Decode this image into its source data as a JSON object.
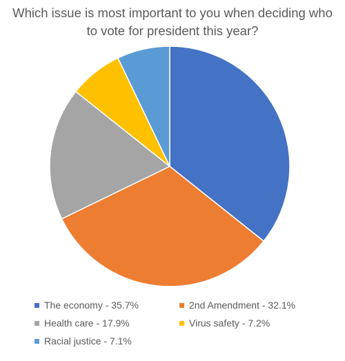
{
  "chart_data": {
    "type": "pie",
    "title_lines": [
      "Which issue is most important to you when deciding who",
      "to vote for president this year?"
    ],
    "slices": [
      {
        "label": "The economy",
        "value": 35.7,
        "legend": "The economy - 35.7%",
        "color": "#4472C4"
      },
      {
        "label": "2nd Amendment",
        "value": 32.1,
        "legend": "2nd Amendment - 32.1%",
        "color": "#ED7D31"
      },
      {
        "label": "Health care",
        "value": 17.9,
        "legend": "Health care - 17.9%",
        "color": "#A5A5A5"
      },
      {
        "label": "Virus safety",
        "value": 7.2,
        "legend": "Virus safety - 7.2%",
        "color": "#FFC000"
      },
      {
        "label": "Racial justice",
        "value": 7.1,
        "legend": "Racial justice - 7.1%",
        "color": "#5B9BD5"
      }
    ],
    "start_angle": "12 o'clock",
    "direction": "clockwise",
    "legend_position": "bottom"
  }
}
